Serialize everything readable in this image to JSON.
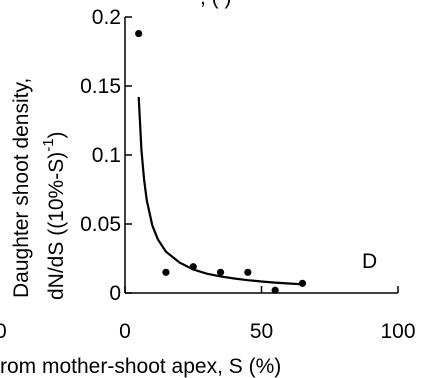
{
  "chart_data": {
    "type": "scatter",
    "panel_label": "D",
    "xlabel": "rom mother-shoot apex, S (%)",
    "ylabel_line1": "Daughter shoot density,",
    "ylabel_line2_main": "dN/dS ((10%-S)",
    "ylabel_line2_sup": "-1",
    "ylabel_line2_close": ")",
    "top_label_fragment": ",  (  )",
    "left_axis_fragment": "0",
    "xlim": [
      0,
      100
    ],
    "ylim": [
      0,
      0.2
    ],
    "x_ticks": [
      0,
      50,
      100
    ],
    "y_ticks": [
      0,
      0.05,
      0.1,
      0.15,
      0.2
    ],
    "x_tick_labels": [
      "0",
      "50",
      "100"
    ],
    "y_tick_labels": [
      "0",
      "0.05",
      "0.1",
      "0.15",
      "0.2"
    ],
    "series": [
      {
        "type": "scatter",
        "x": [
          5,
          15,
          25,
          35,
          45,
          55,
          65
        ],
        "y": [
          0.188,
          0.015,
          0.019,
          0.015,
          0.015,
          0.002,
          0.007
        ]
      },
      {
        "type": "line",
        "x": [
          5,
          6,
          7,
          8,
          10,
          12,
          15,
          20,
          25,
          30,
          35,
          40,
          45,
          50,
          55,
          60,
          65
        ],
        "y": [
          0.142,
          0.104,
          0.082,
          0.067,
          0.049,
          0.039,
          0.03,
          0.022,
          0.017,
          0.014,
          0.012,
          0.0105,
          0.0093,
          0.0083,
          0.0075,
          0.0069,
          0.0063
        ]
      }
    ],
    "grid": false
  }
}
